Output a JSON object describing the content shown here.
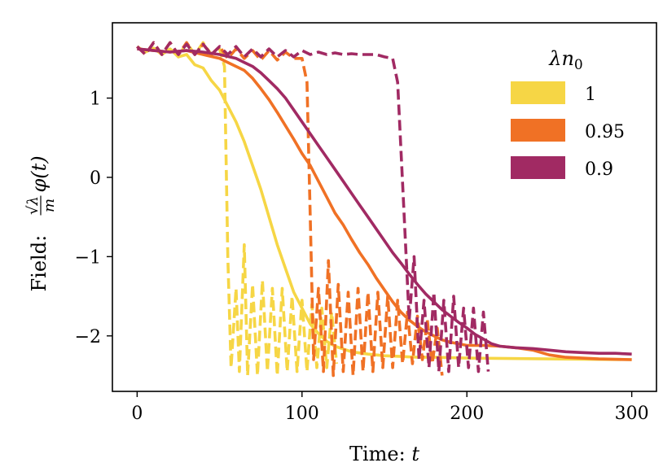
{
  "chart_data": {
    "type": "line",
    "title": "",
    "xlabel": "Time: t",
    "xlabel_prefix": "Time: ",
    "xlabel_var": "t",
    "ylabel": "Field: (√λ/m) φ(t)",
    "ylabel_prefix": "Field: ",
    "ylabel_frac_num": "√λ",
    "ylabel_frac_den": "m",
    "ylabel_rest": "φ(t)",
    "xlim": [
      -15,
      315
    ],
    "ylim": [
      -2.7,
      1.95
    ],
    "x_ticks": [
      0,
      100,
      200,
      300
    ],
    "x_tick_labels": [
      "0",
      "100",
      "200",
      "300"
    ],
    "y_ticks": [
      1,
      0,
      -1,
      -2
    ],
    "y_tick_labels": [
      "1",
      "0",
      "−1",
      "−2"
    ],
    "grid": false,
    "legend": {
      "title": "λn₀",
      "title_main": "λn",
      "title_sub": "0",
      "placement": "top-right",
      "entries": [
        "1",
        "0.95",
        "0.9"
      ]
    },
    "series": [
      {
        "name": "1",
        "style": "solid",
        "color": "#f6d645",
        "points": [
          [
            0,
            1.65
          ],
          [
            5,
            1.58
          ],
          [
            10,
            1.63
          ],
          [
            15,
            1.55
          ],
          [
            20,
            1.62
          ],
          [
            25,
            1.52
          ],
          [
            30,
            1.55
          ],
          [
            35,
            1.42
          ],
          [
            40,
            1.38
          ],
          [
            45,
            1.22
          ],
          [
            50,
            1.1
          ],
          [
            55,
            0.9
          ],
          [
            60,
            0.7
          ],
          [
            65,
            0.45
          ],
          [
            70,
            0.15
          ],
          [
            75,
            -0.15
          ],
          [
            80,
            -0.5
          ],
          [
            85,
            -0.85
          ],
          [
            90,
            -1.15
          ],
          [
            95,
            -1.45
          ],
          [
            100,
            -1.65
          ],
          [
            105,
            -1.85
          ],
          [
            110,
            -1.97
          ],
          [
            115,
            -2.07
          ],
          [
            120,
            -2.13
          ],
          [
            130,
            -2.2
          ],
          [
            140,
            -2.23
          ],
          [
            150,
            -2.25
          ],
          [
            160,
            -2.26
          ],
          [
            170,
            -2.27
          ],
          [
            180,
            -2.27
          ],
          [
            200,
            -2.28
          ],
          [
            250,
            -2.29
          ],
          [
            300,
            -2.3
          ]
        ]
      },
      {
        "name": "1 (dashed)",
        "style": "dashed",
        "color": "#f6d645",
        "points": [
          [
            0,
            1.65
          ],
          [
            5,
            1.55
          ],
          [
            10,
            1.7
          ],
          [
            15,
            1.55
          ],
          [
            20,
            1.7
          ],
          [
            25,
            1.52
          ],
          [
            30,
            1.7
          ],
          [
            35,
            1.55
          ],
          [
            40,
            1.7
          ],
          [
            45,
            1.55
          ],
          [
            50,
            1.62
          ],
          [
            53,
            1.4
          ],
          [
            55,
            -1.0
          ],
          [
            57,
            -2.4
          ],
          [
            60,
            -1.4
          ],
          [
            62,
            -2.45
          ],
          [
            65,
            -0.85
          ],
          [
            67,
            -2.5
          ],
          [
            70,
            -1.35
          ],
          [
            73,
            -2.5
          ],
          [
            76,
            -1.3
          ],
          [
            79,
            -2.45
          ],
          [
            82,
            -1.4
          ],
          [
            85,
            -2.5
          ],
          [
            88,
            -1.4
          ],
          [
            91,
            -2.45
          ],
          [
            94,
            -1.5
          ],
          [
            97,
            -2.45
          ],
          [
            100,
            -1.55
          ],
          [
            103,
            -2.45
          ],
          [
            106,
            -1.6
          ],
          [
            109,
            -2.4
          ],
          [
            112,
            -1.65
          ],
          [
            115,
            -2.4
          ],
          [
            118,
            -1.7
          ],
          [
            121,
            -2.35
          ]
        ]
      },
      {
        "name": "0.95",
        "style": "solid",
        "color": "#f07125",
        "points": [
          [
            0,
            1.62
          ],
          [
            10,
            1.6
          ],
          [
            20,
            1.58
          ],
          [
            30,
            1.6
          ],
          [
            40,
            1.55
          ],
          [
            50,
            1.5
          ],
          [
            55,
            1.45
          ],
          [
            60,
            1.4
          ],
          [
            65,
            1.35
          ],
          [
            70,
            1.25
          ],
          [
            75,
            1.12
          ],
          [
            80,
            0.98
          ],
          [
            85,
            0.82
          ],
          [
            90,
            0.65
          ],
          [
            95,
            0.48
          ],
          [
            100,
            0.3
          ],
          [
            105,
            0.15
          ],
          [
            110,
            -0.05
          ],
          [
            115,
            -0.25
          ],
          [
            120,
            -0.45
          ],
          [
            125,
            -0.6
          ],
          [
            130,
            -0.78
          ],
          [
            135,
            -0.95
          ],
          [
            140,
            -1.1
          ],
          [
            145,
            -1.27
          ],
          [
            150,
            -1.42
          ],
          [
            155,
            -1.57
          ],
          [
            160,
            -1.7
          ],
          [
            165,
            -1.8
          ],
          [
            170,
            -1.88
          ],
          [
            175,
            -1.95
          ],
          [
            180,
            -2.0
          ],
          [
            185,
            -2.05
          ],
          [
            190,
            -2.08
          ],
          [
            195,
            -2.1
          ],
          [
            200,
            -2.12
          ],
          [
            210,
            -2.12
          ],
          [
            220,
            -2.13
          ],
          [
            230,
            -2.15
          ],
          [
            240,
            -2.18
          ],
          [
            250,
            -2.24
          ],
          [
            260,
            -2.27
          ],
          [
            270,
            -2.28
          ],
          [
            280,
            -2.29
          ],
          [
            300,
            -2.3
          ]
        ]
      },
      {
        "name": "0.95 (dashed)",
        "style": "dashed",
        "color": "#f07125",
        "points": [
          [
            0,
            1.65
          ],
          [
            5,
            1.55
          ],
          [
            10,
            1.7
          ],
          [
            15,
            1.55
          ],
          [
            20,
            1.7
          ],
          [
            25,
            1.55
          ],
          [
            30,
            1.7
          ],
          [
            35,
            1.55
          ],
          [
            40,
            1.68
          ],
          [
            45,
            1.55
          ],
          [
            50,
            1.65
          ],
          [
            55,
            1.5
          ],
          [
            60,
            1.62
          ],
          [
            65,
            1.5
          ],
          [
            70,
            1.6
          ],
          [
            75,
            1.48
          ],
          [
            80,
            1.6
          ],
          [
            85,
            1.48
          ],
          [
            90,
            1.58
          ],
          [
            95,
            1.5
          ],
          [
            100,
            1.5
          ],
          [
            103,
            1.2
          ],
          [
            105,
            -0.5
          ],
          [
            107,
            -2.3
          ],
          [
            110,
            -1.4
          ],
          [
            113,
            -2.45
          ],
          [
            116,
            -1.05
          ],
          [
            119,
            -2.5
          ],
          [
            122,
            -1.35
          ],
          [
            125,
            -2.45
          ],
          [
            128,
            -1.45
          ],
          [
            131,
            -2.5
          ],
          [
            134,
            -1.4
          ],
          [
            137,
            -2.45
          ],
          [
            140,
            -1.45
          ],
          [
            143,
            -2.45
          ],
          [
            146,
            -1.45
          ],
          [
            149,
            -2.4
          ],
          [
            152,
            -1.5
          ],
          [
            155,
            -2.4
          ],
          [
            158,
            -1.55
          ],
          [
            161,
            -2.35
          ],
          [
            164,
            -1.7
          ],
          [
            167,
            -2.35
          ],
          [
            170,
            -1.75
          ],
          [
            173,
            -2.3
          ],
          [
            176,
            -1.8
          ],
          [
            179,
            -2.35
          ],
          [
            182,
            -1.9
          ],
          [
            185,
            -2.5
          ]
        ]
      },
      {
        "name": "0.9",
        "style": "solid",
        "color": "#a12a63",
        "points": [
          [
            0,
            1.62
          ],
          [
            10,
            1.6
          ],
          [
            20,
            1.58
          ],
          [
            30,
            1.6
          ],
          [
            40,
            1.58
          ],
          [
            50,
            1.55
          ],
          [
            60,
            1.5
          ],
          [
            65,
            1.45
          ],
          [
            70,
            1.4
          ],
          [
            75,
            1.32
          ],
          [
            80,
            1.22
          ],
          [
            85,
            1.12
          ],
          [
            90,
            1.0
          ],
          [
            95,
            0.85
          ],
          [
            100,
            0.7
          ],
          [
            105,
            0.55
          ],
          [
            110,
            0.4
          ],
          [
            115,
            0.25
          ],
          [
            120,
            0.1
          ],
          [
            125,
            -0.05
          ],
          [
            130,
            -0.2
          ],
          [
            135,
            -0.35
          ],
          [
            140,
            -0.5
          ],
          [
            145,
            -0.65
          ],
          [
            150,
            -0.8
          ],
          [
            155,
            -0.95
          ],
          [
            160,
            -1.08
          ],
          [
            165,
            -1.22
          ],
          [
            170,
            -1.35
          ],
          [
            175,
            -1.47
          ],
          [
            180,
            -1.57
          ],
          [
            185,
            -1.67
          ],
          [
            190,
            -1.75
          ],
          [
            195,
            -1.83
          ],
          [
            200,
            -1.9
          ],
          [
            205,
            -1.98
          ],
          [
            210,
            -2.04
          ],
          [
            215,
            -2.1
          ],
          [
            220,
            -2.13
          ],
          [
            230,
            -2.15
          ],
          [
            240,
            -2.16
          ],
          [
            250,
            -2.18
          ],
          [
            260,
            -2.2
          ],
          [
            270,
            -2.21
          ],
          [
            280,
            -2.22
          ],
          [
            290,
            -2.22
          ],
          [
            300,
            -2.23
          ]
        ]
      },
      {
        "name": "0.9 (dashed)",
        "style": "dashed",
        "color": "#a12a63",
        "points": [
          [
            0,
            1.65
          ],
          [
            5,
            1.55
          ],
          [
            10,
            1.7
          ],
          [
            15,
            1.55
          ],
          [
            20,
            1.7
          ],
          [
            25,
            1.55
          ],
          [
            30,
            1.68
          ],
          [
            35,
            1.55
          ],
          [
            40,
            1.68
          ],
          [
            45,
            1.55
          ],
          [
            50,
            1.65
          ],
          [
            55,
            1.55
          ],
          [
            60,
            1.65
          ],
          [
            65,
            1.52
          ],
          [
            70,
            1.62
          ],
          [
            75,
            1.52
          ],
          [
            80,
            1.62
          ],
          [
            85,
            1.52
          ],
          [
            90,
            1.6
          ],
          [
            95,
            1.52
          ],
          [
            100,
            1.6
          ],
          [
            105,
            1.55
          ],
          [
            110,
            1.58
          ],
          [
            115,
            1.55
          ],
          [
            120,
            1.57
          ],
          [
            125,
            1.55
          ],
          [
            130,
            1.56
          ],
          [
            135,
            1.55
          ],
          [
            140,
            1.55
          ],
          [
            145,
            1.55
          ],
          [
            150,
            1.52
          ],
          [
            155,
            1.5
          ],
          [
            158,
            1.2
          ],
          [
            162,
            -0.5
          ],
          [
            165,
            -1.8
          ],
          [
            168,
            -1.0
          ],
          [
            171,
            -2.3
          ],
          [
            174,
            -1.55
          ],
          [
            177,
            -2.4
          ],
          [
            180,
            -1.45
          ],
          [
            183,
            -2.45
          ],
          [
            186,
            -1.55
          ],
          [
            189,
            -2.45
          ],
          [
            192,
            -1.5
          ],
          [
            195,
            -2.4
          ],
          [
            198,
            -1.65
          ],
          [
            201,
            -2.4
          ],
          [
            204,
            -1.65
          ],
          [
            207,
            -2.45
          ],
          [
            210,
            -1.7
          ],
          [
            213,
            -2.45
          ]
        ]
      }
    ]
  }
}
